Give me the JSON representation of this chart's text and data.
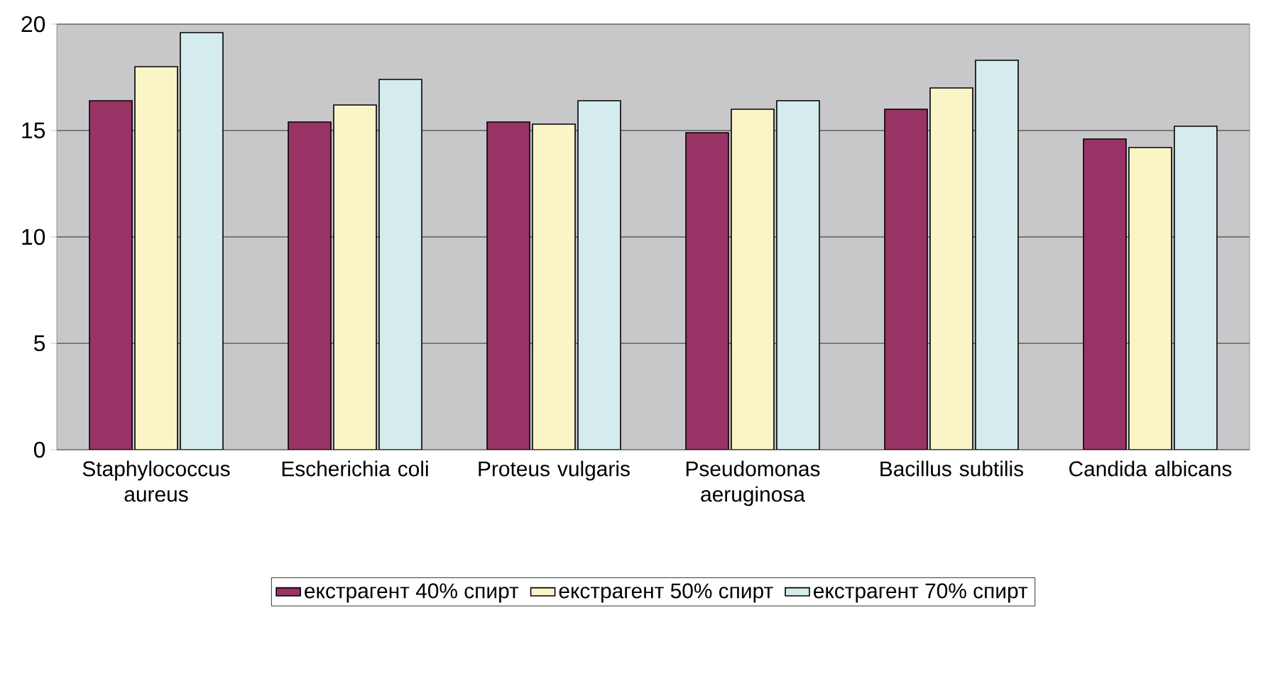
{
  "chart_data": {
    "type": "bar",
    "categories": [
      "Staphylococcus aureus",
      "Escherichia coli",
      "Proteus vulgaris",
      "Pseudomonas aeruginosa",
      "Bacillus subtilis",
      "Candida albicans"
    ],
    "series": [
      {
        "name": "екстрагент 40% спирт",
        "color": "#993366",
        "values": [
          16.4,
          15.4,
          15.4,
          14.9,
          16.0,
          14.6
        ]
      },
      {
        "name": "екстрагент 50% спирт",
        "color": "#fbf4c6",
        "values": [
          18.0,
          16.2,
          15.3,
          16.0,
          17.0,
          14.2
        ]
      },
      {
        "name": "екстрагент 70% спирт",
        "color": "#d4ecee",
        "values": [
          19.6,
          17.4,
          16.4,
          16.4,
          18.3,
          15.2
        ]
      }
    ],
    "ylim": [
      0,
      20
    ],
    "yticks": [
      0,
      5,
      10,
      15,
      20
    ],
    "grid": "y",
    "legend": "bottom"
  }
}
